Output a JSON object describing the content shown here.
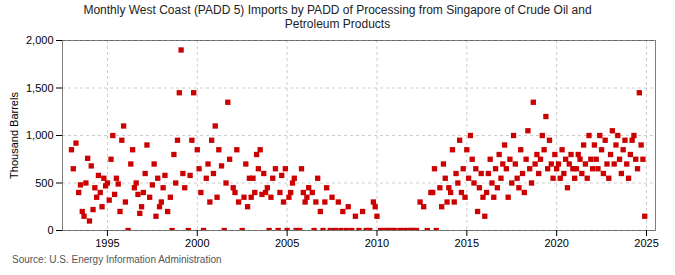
{
  "chart_data": {
    "type": "scatter",
    "title": "Monthly West Coast (PADD 5) Imports by PADD of Processing from Singapore of Crude Oil and\nPetroleum Products",
    "ylabel": "Thousand Barrels",
    "source": "Source: U.S. Energy Information Administration",
    "color": "#CC0000",
    "marker": "square",
    "grid": true,
    "xlim": [
      1992.5,
      2025.5
    ],
    "ylim": [
      0,
      2000
    ],
    "xticks": [
      1995,
      2000,
      2005,
      2010,
      2015,
      2020,
      2025
    ],
    "yticks": [
      0,
      500,
      {
        "value": 1000,
        "label": "1,000"
      },
      {
        "value": 1500,
        "label": "1,500"
      },
      {
        "value": 2000,
        "label": "2,000"
      }
    ],
    "x": [
      1993.0,
      1993.1,
      1993.25,
      1993.4,
      1993.5,
      1993.6,
      1993.7,
      1993.8,
      1993.9,
      1994.0,
      1994.1,
      1994.2,
      1994.3,
      1994.4,
      1994.5,
      1994.6,
      1994.7,
      1994.8,
      1994.9,
      1995.0,
      1995.1,
      1995.2,
      1995.3,
      1995.4,
      1995.5,
      1995.6,
      1995.7,
      1995.8,
      1995.9,
      1996.0,
      1996.15,
      1996.3,
      1996.4,
      1996.5,
      1996.6,
      1996.7,
      1996.8,
      1996.9,
      1997.0,
      1997.1,
      1997.2,
      1997.35,
      1997.5,
      1997.6,
      1997.7,
      1997.8,
      1997.9,
      1998.0,
      1998.1,
      1998.2,
      1998.35,
      1998.5,
      1998.6,
      1998.7,
      1998.8,
      1998.9,
      1999.0,
      1999.1,
      1999.2,
      1999.3,
      1999.5,
      1999.6,
      1999.7,
      1999.8,
      2000.0,
      2000.1,
      2000.2,
      2000.35,
      2000.5,
      2000.6,
      2000.7,
      2000.8,
      2000.9,
      2001.0,
      2001.1,
      2001.2,
      2001.35,
      2001.5,
      2001.6,
      2001.7,
      2001.8,
      2002.0,
      2002.1,
      2002.2,
      2002.3,
      2002.5,
      2002.6,
      2002.7,
      2002.8,
      2002.9,
      2003.0,
      2003.1,
      2003.2,
      2003.3,
      2003.4,
      2003.5,
      2003.6,
      2003.7,
      2003.8,
      2003.9,
      2004.0,
      2004.1,
      2004.2,
      2004.35,
      2004.5,
      2004.6,
      2004.7,
      2004.8,
      2004.9,
      2005.0,
      2005.1,
      2005.2,
      2005.3,
      2005.4,
      2005.5,
      2005.7,
      2005.8,
      2005.9,
      2006.0,
      2006.1,
      2006.2,
      2006.4,
      2006.5,
      2006.6,
      2006.7,
      2006.85,
      2007.0,
      2007.1,
      2007.2,
      2007.4,
      2007.5,
      2007.7,
      2007.85,
      2008.0,
      2008.1,
      2008.3,
      2008.4,
      2008.6,
      2008.8,
      2009.0,
      2009.2,
      2009.4,
      2009.6,
      2009.8,
      2009.9,
      2010.0,
      2010.2,
      2010.4,
      2010.6,
      2010.8,
      2011.0,
      2011.3,
      2011.5,
      2011.7,
      2011.9,
      2012.0,
      2012.2,
      2012.4,
      2012.6,
      2012.8,
      2013.0,
      2013.1,
      2013.2,
      2013.3,
      2013.5,
      2013.6,
      2013.7,
      2013.8,
      2013.9,
      2014.0,
      2014.1,
      2014.2,
      2014.3,
      2014.4,
      2014.5,
      2014.6,
      2014.7,
      2014.8,
      2014.9,
      2015.0,
      2015.1,
      2015.2,
      2015.3,
      2015.4,
      2015.5,
      2015.6,
      2015.7,
      2015.8,
      2015.9,
      2016.0,
      2016.1,
      2016.2,
      2016.3,
      2016.4,
      2016.5,
      2016.6,
      2016.7,
      2016.8,
      2016.9,
      2017.0,
      2017.1,
      2017.2,
      2017.3,
      2017.4,
      2017.5,
      2017.6,
      2017.7,
      2017.8,
      2017.9,
      2018.0,
      2018.1,
      2018.2,
      2018.3,
      2018.4,
      2018.5,
      2018.6,
      2018.7,
      2018.8,
      2018.9,
      2019.0,
      2019.1,
      2019.2,
      2019.3,
      2019.4,
      2019.5,
      2019.6,
      2019.7,
      2019.8,
      2019.9,
      2020.0,
      2020.1,
      2020.2,
      2020.3,
      2020.4,
      2020.5,
      2020.6,
      2020.7,
      2020.8,
      2020.9,
      2021.0,
      2021.1,
      2021.2,
      2021.3,
      2021.4,
      2021.5,
      2021.6,
      2021.7,
      2021.8,
      2021.9,
      2022.0,
      2022.1,
      2022.2,
      2022.3,
      2022.4,
      2022.5,
      2022.6,
      2022.7,
      2022.8,
      2022.9,
      2023.0,
      2023.1,
      2023.2,
      2023.3,
      2023.4,
      2023.5,
      2023.6,
      2023.7,
      2023.8,
      2023.9,
      2024.0,
      2024.1,
      2024.2,
      2024.3,
      2024.4,
      2024.5,
      2024.6,
      2024.7,
      2024.8,
      2024.9
    ],
    "values": [
      850,
      650,
      920,
      400,
      480,
      200,
      150,
      500,
      760,
      100,
      680,
      220,
      450,
      350,
      580,
      400,
      250,
      550,
      470,
      500,
      320,
      750,
      1000,
      380,
      550,
      490,
      200,
      950,
      1100,
      300,
      0,
      700,
      850,
      450,
      500,
      380,
      180,
      250,
      400,
      600,
      900,
      350,
      480,
      700,
      150,
      550,
      250,
      300,
      450,
      580,
      200,
      350,
      0,
      800,
      500,
      950,
      1450,
      1900,
      600,
      450,
      0,
      580,
      950,
      1450,
      850,
      650,
      400,
      0,
      550,
      700,
      300,
      950,
      600,
      1100,
      350,
      850,
      680,
      0,
      500,
      1350,
      750,
      450,
      400,
      850,
      300,
      0,
      350,
      700,
      250,
      550,
      350,
      550,
      400,
      800,
      650,
      850,
      380,
      600,
      400,
      450,
      0,
      350,
      550,
      650,
      0,
      400,
      580,
      300,
      650,
      0,
      350,
      400,
      500,
      550,
      0,
      0,
      650,
      400,
      300,
      350,
      450,
      400,
      0,
      300,
      550,
      200,
      0,
      300,
      450,
      0,
      350,
      0,
      300,
      0,
      200,
      0,
      250,
      0,
      150,
      0,
      200,
      0,
      0,
      300,
      250,
      150,
      0,
      0,
      0,
      0,
      0,
      0,
      0,
      0,
      0,
      0,
      0,
      300,
      250,
      0,
      400,
      400,
      650,
      0,
      450,
      250,
      700,
      550,
      300,
      450,
      400,
      850,
      300,
      600,
      500,
      950,
      400,
      650,
      350,
      850,
      550,
      1000,
      750,
      500,
      650,
      200,
      450,
      600,
      350,
      150,
      400,
      600,
      750,
      500,
      350,
      650,
      450,
      800,
      550,
      700,
      900,
      650,
      350,
      750,
      500,
      1000,
      700,
      550,
      450,
      850,
      600,
      400,
      750,
      1050,
      650,
      500,
      1350,
      700,
      800,
      600,
      750,
      1000,
      850,
      1200,
      650,
      950,
      700,
      550,
      800,
      650,
      700,
      550,
      850,
      600,
      750,
      450,
      700,
      800,
      650,
      550,
      650,
      800,
      750,
      600,
      900,
      700,
      550,
      1000,
      750,
      650,
      900,
      750,
      650,
      1000,
      850,
      600,
      950,
      700,
      550,
      800,
      1050,
      700,
      900,
      1000,
      750,
      600,
      850,
      950,
      700,
      550,
      800,
      950,
      1000,
      750,
      650,
      1450,
      900,
      750,
      150
    ]
  }
}
